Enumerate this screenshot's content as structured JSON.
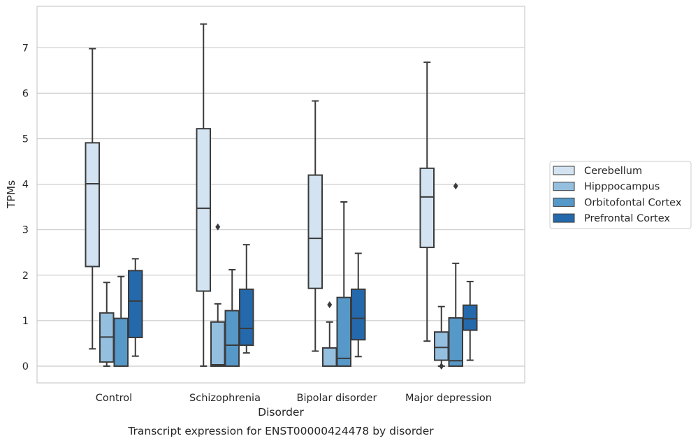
{
  "chart_data": {
    "type": "box",
    "caption": "Transcript expression for ENST00000424478 by disorder",
    "xlabel": "Disorder",
    "ylabel": "TPMs",
    "ylim": [
      -0.35,
      7.9
    ],
    "yticks": [
      0,
      1,
      2,
      3,
      4,
      5,
      6,
      7
    ],
    "grid": true,
    "legend_position": "right",
    "categories": [
      "Control",
      "Schizophrenia",
      "Bipolar disorder",
      "Major depression"
    ],
    "series": [
      {
        "name": "Cerebellum",
        "color": "#d3e3f2",
        "boxes": [
          {
            "whisker_low": 0.38,
            "q1": 2.19,
            "median": 4.01,
            "q3": 4.91,
            "whisker_high": 6.98,
            "outliers": []
          },
          {
            "whisker_low": 0.0,
            "q1": 1.65,
            "median": 3.47,
            "q3": 5.22,
            "whisker_high": 7.52,
            "outliers": []
          },
          {
            "whisker_low": 0.33,
            "q1": 1.71,
            "median": 2.81,
            "q3": 4.2,
            "whisker_high": 5.83,
            "outliers": []
          },
          {
            "whisker_low": 0.55,
            "q1": 2.61,
            "median": 3.72,
            "q3": 4.35,
            "whisker_high": 6.68,
            "outliers": []
          }
        ]
      },
      {
        "name": "Hipppocampus",
        "color": "#94bfdf",
        "boxes": [
          {
            "whisker_low": 0.0,
            "q1": 0.09,
            "median": 0.64,
            "q3": 1.17,
            "whisker_high": 1.84,
            "outliers": []
          },
          {
            "whisker_low": 0.0,
            "q1": 0.0,
            "median": 0.03,
            "q3": 0.97,
            "whisker_high": 1.37,
            "outliers": [
              3.06
            ]
          },
          {
            "whisker_low": 0.0,
            "q1": 0.0,
            "median": 0.0,
            "q3": 0.4,
            "whisker_high": 0.97,
            "outliers": [
              1.35
            ]
          },
          {
            "whisker_low": 0.0,
            "q1": 0.13,
            "median": 0.41,
            "q3": 0.75,
            "whisker_high": 1.31,
            "outliers": [
              0.0
            ]
          }
        ]
      },
      {
        "name": "Orbitofontal Cortex",
        "color": "#5698c8",
        "boxes": [
          {
            "whisker_low": 0.0,
            "q1": 0.0,
            "median": 0.0,
            "q3": 1.05,
            "whisker_high": 1.97,
            "outliers": []
          },
          {
            "whisker_low": 0.0,
            "q1": 0.0,
            "median": 0.46,
            "q3": 1.22,
            "whisker_high": 2.12,
            "outliers": []
          },
          {
            "whisker_low": 0.0,
            "q1": 0.0,
            "median": 0.17,
            "q3": 1.51,
            "whisker_high": 3.61,
            "outliers": []
          },
          {
            "whisker_low": 0.0,
            "q1": 0.0,
            "median": 0.12,
            "q3": 1.06,
            "whisker_high": 2.26,
            "outliers": [
              3.96
            ]
          }
        ]
      },
      {
        "name": "Prefrontal Cortex",
        "color": "#2469ab",
        "boxes": [
          {
            "whisker_low": 0.22,
            "q1": 0.63,
            "median": 1.43,
            "q3": 2.1,
            "whisker_high": 2.36,
            "outliers": []
          },
          {
            "whisker_low": 0.29,
            "q1": 0.46,
            "median": 0.83,
            "q3": 1.69,
            "whisker_high": 2.67,
            "outliers": []
          },
          {
            "whisker_low": 0.21,
            "q1": 0.58,
            "median": 1.05,
            "q3": 1.69,
            "whisker_high": 2.48,
            "outliers": []
          },
          {
            "whisker_low": 0.13,
            "q1": 0.79,
            "median": 1.04,
            "q3": 1.34,
            "whisker_high": 1.86,
            "outliers": []
          }
        ]
      }
    ]
  }
}
